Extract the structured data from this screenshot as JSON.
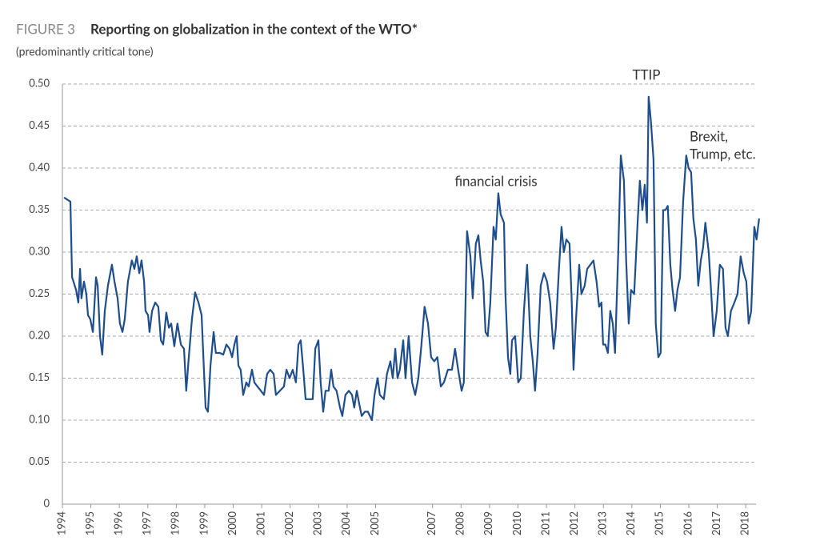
{
  "chart_data": {
    "type": "line",
    "figure_label": "FIGURE 3",
    "title": "Reporting on globalization in the context of the WTO*",
    "subtitle": "(predominantly critical tone)",
    "annotations": [
      "financial crisis",
      "TTIP",
      "Brexit,",
      "Trump, etc."
    ],
    "color": "#1f4e8c",
    "grid": true,
    "xlim": [
      1994,
      2018.5
    ],
    "xticks": [
      1994,
      1995,
      1996,
      1997,
      1998,
      1999,
      2000,
      2001,
      2002,
      2003,
      2004,
      2005,
      2007,
      2008,
      2009,
      2010,
      2011,
      2012,
      2013,
      2014,
      2015,
      2016,
      2017,
      2018
    ],
    "ylim": [
      0,
      0.5
    ],
    "yticks": [
      0,
      0.05,
      {
        "value": 0.1,
        "label": "0.10"
      },
      0.15,
      {
        "value": 0.2,
        "label": "0.20"
      },
      0.25,
      {
        "value": 0.3,
        "label": "0.30"
      },
      0.35,
      {
        "value": 0.4,
        "label": "0.40"
      },
      0.45,
      {
        "value": 0.5,
        "label": "0.50"
      }
    ],
    "x": [
      1994.06,
      1994.28,
      1994.34,
      1994.48,
      1994.56,
      1994.62,
      1994.67,
      1994.76,
      1994.84,
      1994.9,
      1994.98,
      1995.07,
      1995.18,
      1995.24,
      1995.32,
      1995.4,
      1995.49,
      1995.6,
      1995.74,
      1995.83,
      1995.94,
      1996.02,
      1996.11,
      1996.19,
      1996.3,
      1996.44,
      1996.53,
      1996.61,
      1996.7,
      1996.78,
      1996.87,
      1996.92,
      1997.01,
      1997.06,
      1997.15,
      1997.26,
      1997.37,
      1997.46,
      1997.54,
      1997.65,
      1997.74,
      1997.82,
      1997.93,
      1998.04,
      1998.16,
      1998.27,
      1998.35,
      1998.44,
      1998.55,
      1998.66,
      1998.78,
      1998.89,
      1998.97,
      1999.03,
      1999.11,
      1999.2,
      1999.31,
      1999.39,
      1999.53,
      1999.65,
      1999.76,
      1999.87,
      1999.96,
      2000.04,
      2000.12,
      2000.18,
      2000.26,
      2000.35,
      2000.46,
      2000.54,
      2000.66,
      2000.74,
      2000.85,
      2000.97,
      2001.08,
      2001.19,
      2001.3,
      2001.42,
      2001.5,
      2001.64,
      2001.78,
      2001.87,
      2001.98,
      2002.09,
      2002.2,
      2002.29,
      2002.37,
      2002.46,
      2002.54,
      2002.68,
      2002.79,
      2002.88,
      2002.99,
      2003.07,
      2003.16,
      2003.24,
      2003.35,
      2003.44,
      2003.52,
      2003.63,
      2003.75,
      2003.83,
      2003.94,
      2004.06,
      2004.17,
      2004.25,
      2004.34,
      2004.42,
      2004.51,
      2004.62,
      2004.73,
      2004.87,
      2004.96,
      2005.07,
      2005.15,
      2005.29,
      2005.4,
      2005.52,
      2005.6,
      2005.69,
      2005.77,
      2005.85,
      2005.97,
      2006.05,
      2006.16,
      2006.28,
      2006.39,
      2006.5,
      2006.61,
      2006.72,
      2006.84,
      2006.95,
      2007.06,
      2007.17,
      2007.29,
      2007.4,
      2007.54,
      2007.68,
      2007.79,
      2007.9,
      2008.02,
      2008.1,
      2008.21,
      2008.33,
      2008.41,
      2008.52,
      2008.61,
      2008.69,
      2008.78,
      2008.86,
      2008.94,
      2009.03,
      2009.14,
      2009.22,
      2009.31,
      2009.39,
      2009.51,
      2009.56,
      2009.65,
      2009.73,
      2009.79,
      2009.9,
      2010.01,
      2010.1,
      2010.21,
      2010.32,
      2010.43,
      2010.52,
      2010.6,
      2010.69,
      2010.8,
      2010.91,
      2011.02,
      2011.13,
      2011.25,
      2011.33,
      2011.44,
      2011.53,
      2011.61,
      2011.7,
      2011.81,
      2011.89,
      2011.95,
      2012.03,
      2012.15,
      2012.23,
      2012.34,
      2012.43,
      2012.54,
      2012.65,
      2012.76,
      2012.85,
      2012.93,
      2012.99,
      2013.07,
      2013.16,
      2013.24,
      2013.33,
      2013.41,
      2013.52,
      2013.61,
      2013.72,
      2013.8,
      2013.89,
      2013.97,
      2014.08,
      2014.2,
      2014.28,
      2014.37,
      2014.45,
      2014.53,
      2014.59,
      2014.67,
      2014.76,
      2014.84,
      2014.93,
      2015.01,
      2015.1,
      2015.18,
      2015.26,
      2015.35,
      2015.43,
      2015.52,
      2015.6,
      2015.69,
      2015.8,
      2015.91,
      2015.99,
      2016.08,
      2016.16,
      2016.25,
      2016.33,
      2016.42,
      2016.5,
      2016.58,
      2016.7,
      2016.78,
      2016.87,
      2016.98,
      2017.09,
      2017.2,
      2017.29,
      2017.37,
      2017.48,
      2017.6,
      2017.71,
      2017.82,
      2017.93,
      2018.02,
      2018.1,
      2018.19,
      2018.3,
      2018.38,
      2018.47
    ],
    "values": [
      0.365,
      0.36,
      0.27,
      0.255,
      0.24,
      0.28,
      0.245,
      0.265,
      0.25,
      0.225,
      0.22,
      0.205,
      0.27,
      0.26,
      0.2,
      0.178,
      0.23,
      0.26,
      0.285,
      0.265,
      0.245,
      0.215,
      0.205,
      0.22,
      0.265,
      0.29,
      0.28,
      0.295,
      0.275,
      0.29,
      0.265,
      0.23,
      0.225,
      0.205,
      0.23,
      0.24,
      0.235,
      0.195,
      0.19,
      0.228,
      0.21,
      0.215,
      0.188,
      0.215,
      0.19,
      0.185,
      0.135,
      0.175,
      0.22,
      0.252,
      0.24,
      0.225,
      0.16,
      0.115,
      0.11,
      0.165,
      0.205,
      0.18,
      0.18,
      0.178,
      0.19,
      0.185,
      0.175,
      0.19,
      0.2,
      0.165,
      0.16,
      0.13,
      0.145,
      0.14,
      0.16,
      0.145,
      0.14,
      0.135,
      0.13,
      0.155,
      0.16,
      0.155,
      0.13,
      0.135,
      0.14,
      0.16,
      0.15,
      0.16,
      0.145,
      0.19,
      0.195,
      0.16,
      0.125,
      0.125,
      0.125,
      0.185,
      0.195,
      0.145,
      0.11,
      0.135,
      0.135,
      0.16,
      0.14,
      0.135,
      0.115,
      0.105,
      0.13,
      0.135,
      0.13,
      0.115,
      0.135,
      0.12,
      0.105,
      0.11,
      0.11,
      0.1,
      0.13,
      0.15,
      0.13,
      0.125,
      0.155,
      0.17,
      0.15,
      0.185,
      0.15,
      0.16,
      0.195,
      0.15,
      0.2,
      0.145,
      0.13,
      0.15,
      0.19,
      0.235,
      0.215,
      0.175,
      0.17,
      0.175,
      0.14,
      0.145,
      0.16,
      0.16,
      0.185,
      0.16,
      0.135,
      0.145,
      0.325,
      0.295,
      0.245,
      0.31,
      0.32,
      0.29,
      0.265,
      0.205,
      0.2,
      0.24,
      0.33,
      0.315,
      0.37,
      0.345,
      0.335,
      0.25,
      0.175,
      0.155,
      0.195,
      0.2,
      0.145,
      0.15,
      0.23,
      0.285,
      0.2,
      0.17,
      0.135,
      0.18,
      0.26,
      0.275,
      0.265,
      0.24,
      0.185,
      0.21,
      0.28,
      0.33,
      0.3,
      0.315,
      0.31,
      0.24,
      0.16,
      0.215,
      0.285,
      0.25,
      0.26,
      0.28,
      0.285,
      0.29,
      0.265,
      0.235,
      0.24,
      0.19,
      0.19,
      0.18,
      0.23,
      0.215,
      0.18,
      0.3,
      0.415,
      0.385,
      0.29,
      0.215,
      0.255,
      0.25,
      0.335,
      0.385,
      0.35,
      0.38,
      0.335,
      0.485,
      0.455,
      0.41,
      0.215,
      0.175,
      0.18,
      0.35,
      0.35,
      0.355,
      0.285,
      0.255,
      0.23,
      0.255,
      0.27,
      0.36,
      0.415,
      0.4,
      0.395,
      0.34,
      0.315,
      0.26,
      0.29,
      0.305,
      0.335,
      0.3,
      0.255,
      0.2,
      0.23,
      0.285,
      0.28,
      0.21,
      0.2,
      0.23,
      0.24,
      0.25,
      0.295,
      0.275,
      0.265,
      0.215,
      0.23,
      0.33,
      0.315,
      0.34
    ]
  }
}
